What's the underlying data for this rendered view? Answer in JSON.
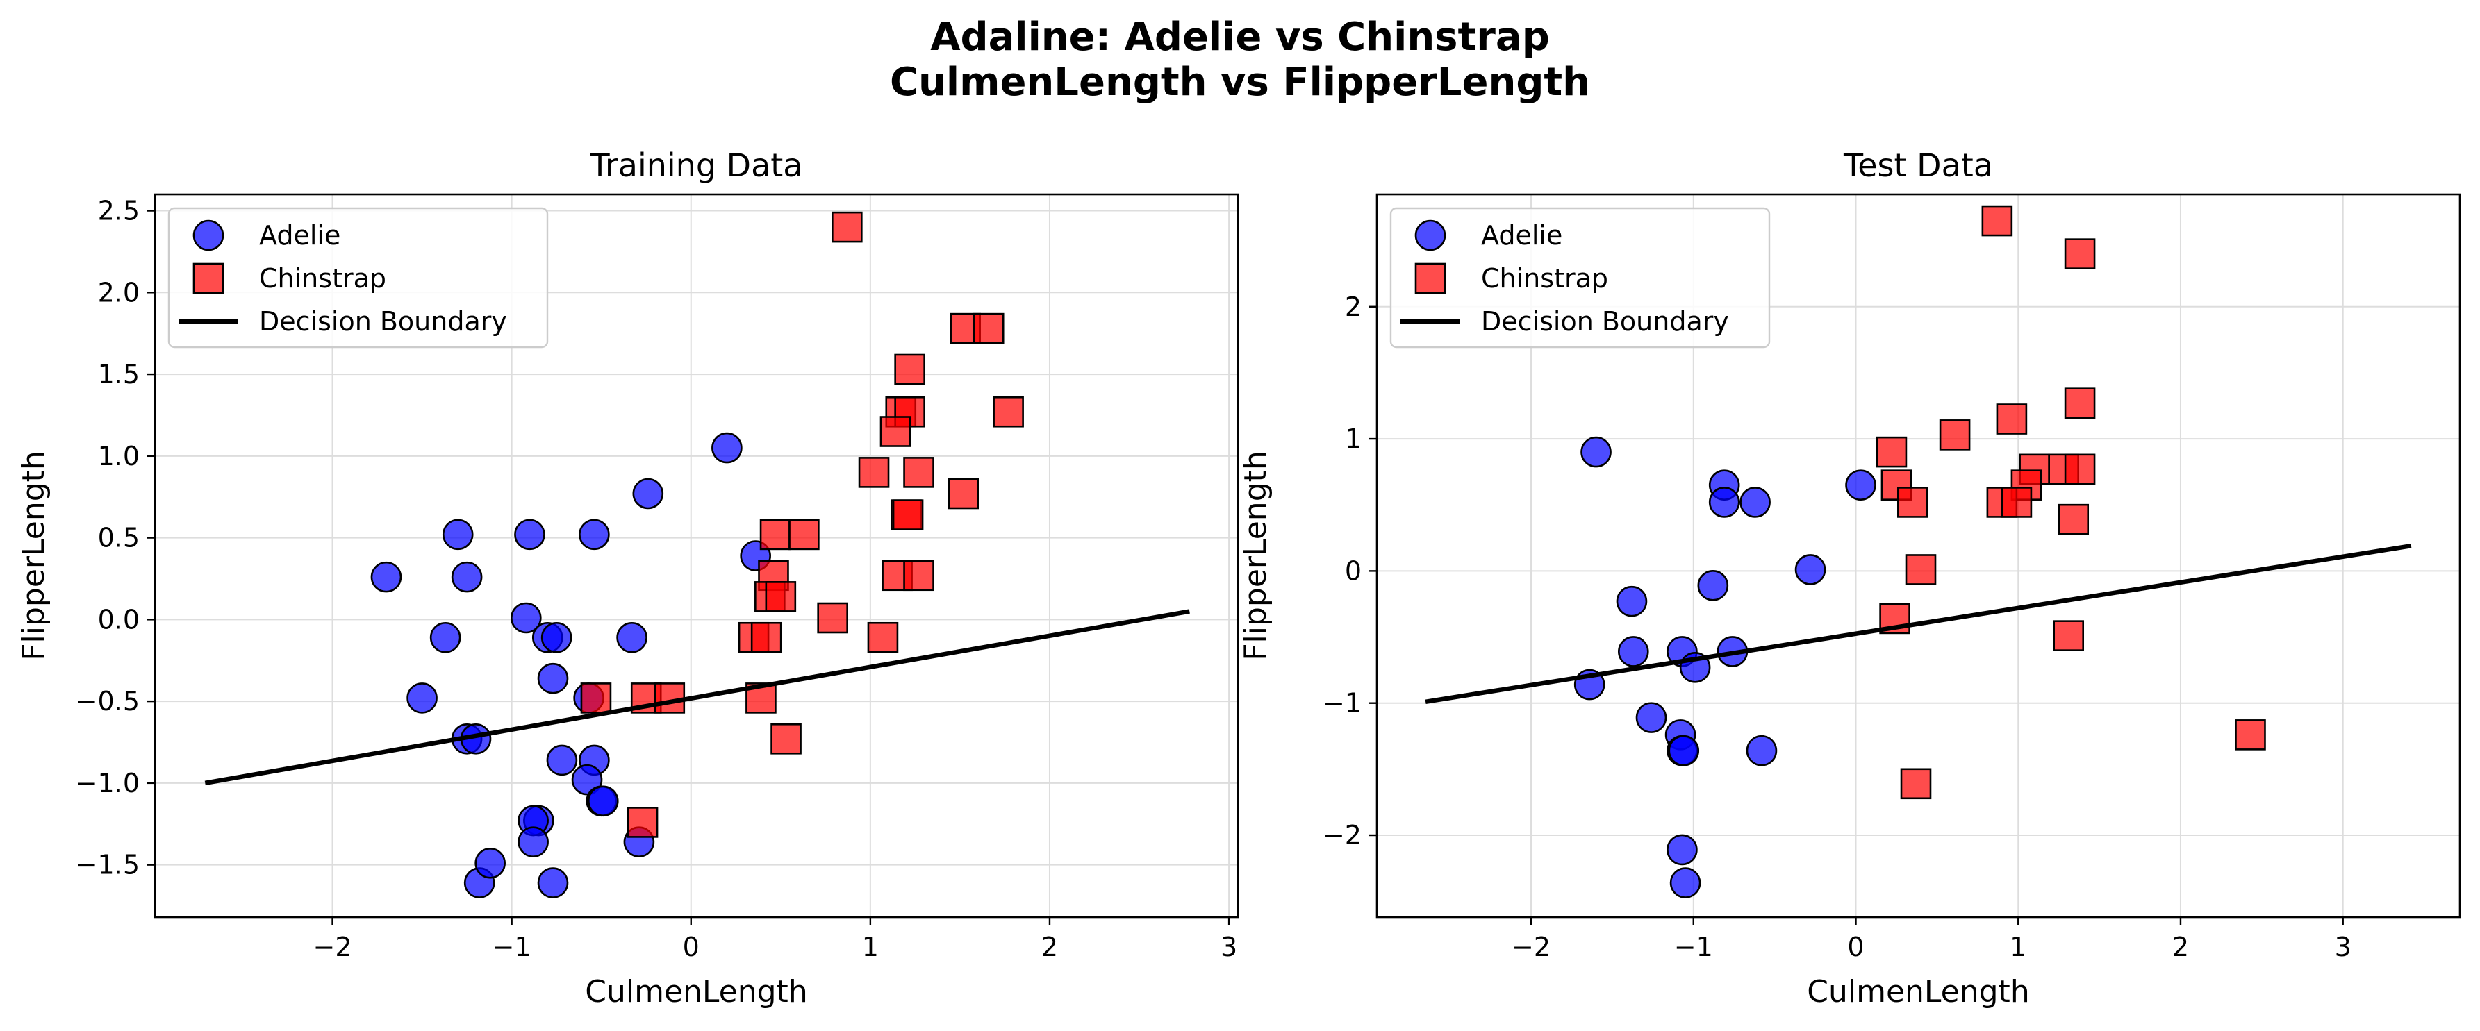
{
  "figure": {
    "title_line1": "Adaline: Adelie vs Chinstrap",
    "title_line2": "CulmenLength vs FlipperLength"
  },
  "colors": {
    "adelie": "#0000ff",
    "chinstrap": "#ff0000",
    "boundary": "#000000",
    "grid": "#dddddd"
  },
  "chart_data": [
    {
      "type": "scatter",
      "title": "Training Data",
      "xlabel": "CulmenLength",
      "ylabel": "FlipperLength",
      "xlim": [
        -2.99,
        3.05
      ],
      "ylim": [
        -1.82,
        2.6
      ],
      "xticks": [
        -2,
        -1,
        0,
        1,
        2,
        3
      ],
      "yticks": [
        -1.5,
        -1.0,
        -0.5,
        0.0,
        0.5,
        1.0,
        1.5,
        2.0,
        2.5
      ],
      "xtick_labels": [
        "−2",
        "−1",
        "0",
        "1",
        "2",
        "3"
      ],
      "ytick_labels": [
        "−1.5",
        "−1.0",
        "−0.5",
        "0.0",
        "0.5",
        "1.0",
        "1.5",
        "2.0",
        "2.5"
      ],
      "grid": true,
      "legend_position": "top-left",
      "legend": [
        "Adelie",
        "Chinstrap",
        "Decision Boundary"
      ],
      "series": [
        {
          "name": "Adelie",
          "marker": "circle",
          "points": [
            [
              -1.7,
              0.26
            ],
            [
              -1.3,
              0.52
            ],
            [
              -1.25,
              0.26
            ],
            [
              -1.37,
              -0.11
            ],
            [
              -1.5,
              -0.48
            ],
            [
              -1.25,
              -0.73
            ],
            [
              -1.2,
              -0.73
            ],
            [
              -1.18,
              -1.61
            ],
            [
              -1.12,
              -1.49
            ],
            [
              -0.9,
              0.52
            ],
            [
              -0.92,
              0.01
            ],
            [
              -0.8,
              -0.11
            ],
            [
              -0.75,
              -0.11
            ],
            [
              -0.77,
              -0.36
            ],
            [
              -0.72,
              -0.86
            ],
            [
              -0.85,
              -1.23
            ],
            [
              -0.88,
              -1.23
            ],
            [
              -0.88,
              -1.36
            ],
            [
              -0.77,
              -1.61
            ],
            [
              -0.54,
              0.52
            ],
            [
              -0.24,
              0.77
            ],
            [
              -0.33,
              -0.11
            ],
            [
              -0.57,
              -0.48
            ],
            [
              -0.54,
              -0.86
            ],
            [
              -0.58,
              -0.98
            ],
            [
              -0.5,
              -1.11
            ],
            [
              -0.49,
              -1.11
            ],
            [
              -0.29,
              -1.36
            ],
            [
              0.2,
              1.05
            ],
            [
              0.36,
              0.39
            ]
          ]
        },
        {
          "name": "Chinstrap",
          "marker": "square",
          "points": [
            [
              0.87,
              2.4
            ],
            [
              1.53,
              1.78
            ],
            [
              1.66,
              1.78
            ],
            [
              1.22,
              1.53
            ],
            [
              1.17,
              1.27
            ],
            [
              1.22,
              1.27
            ],
            [
              1.77,
              1.27
            ],
            [
              1.14,
              1.15
            ],
            [
              1.02,
              0.9
            ],
            [
              1.27,
              0.9
            ],
            [
              1.2,
              0.64
            ],
            [
              1.21,
              0.64
            ],
            [
              1.52,
              0.77
            ],
            [
              0.47,
              0.52
            ],
            [
              0.63,
              0.52
            ],
            [
              0.46,
              0.27
            ],
            [
              1.15,
              0.27
            ],
            [
              1.27,
              0.27
            ],
            [
              0.44,
              0.14
            ],
            [
              0.5,
              0.14
            ],
            [
              0.79,
              0.01
            ],
            [
              0.35,
              -0.11
            ],
            [
              0.42,
              -0.11
            ],
            [
              1.07,
              -0.11
            ],
            [
              -0.53,
              -0.48
            ],
            [
              -0.25,
              -0.48
            ],
            [
              -0.12,
              -0.48
            ],
            [
              0.39,
              -0.48
            ],
            [
              0.53,
              -0.73
            ],
            [
              -0.27,
              -1.24
            ]
          ]
        }
      ],
      "decision_boundary": {
        "name": "Decision Boundary",
        "x": [
          -2.71,
          2.78
        ],
        "y": [
          -1.0,
          0.05
        ]
      }
    },
    {
      "type": "scatter",
      "title": "Test Data",
      "xlabel": "CulmenLength",
      "ylabel": "FlipperLength",
      "xlim": [
        -2.95,
        3.72
      ],
      "ylim": [
        -2.62,
        2.85
      ],
      "xticks": [
        -2,
        -1,
        0,
        1,
        2,
        3
      ],
      "yticks": [
        -2,
        -1,
        0,
        1,
        2
      ],
      "xtick_labels": [
        "−2",
        "−1",
        "0",
        "1",
        "2",
        "3"
      ],
      "ytick_labels": [
        "−2",
        "−1",
        "0",
        "1",
        "2"
      ],
      "grid": true,
      "legend_position": "top-left",
      "legend": [
        "Adelie",
        "Chinstrap",
        "Decision Boundary"
      ],
      "series": [
        {
          "name": "Adelie",
          "marker": "circle",
          "points": [
            [
              -1.6,
              0.9
            ],
            [
              -0.81,
              0.65
            ],
            [
              -0.81,
              0.52
            ],
            [
              -0.62,
              0.52
            ],
            [
              0.03,
              0.65
            ],
            [
              -0.28,
              0.01
            ],
            [
              -0.88,
              -0.11
            ],
            [
              -1.38,
              -0.23
            ],
            [
              -1.37,
              -0.61
            ],
            [
              -1.07,
              -0.61
            ],
            [
              -0.76,
              -0.61
            ],
            [
              -0.99,
              -0.73
            ],
            [
              -1.64,
              -0.86
            ],
            [
              -1.26,
              -1.11
            ],
            [
              -1.08,
              -1.24
            ],
            [
              -1.07,
              -1.36
            ],
            [
              -1.06,
              -1.36
            ],
            [
              -0.58,
              -1.36
            ],
            [
              -1.07,
              -2.11
            ],
            [
              -1.05,
              -2.36
            ]
          ]
        },
        {
          "name": "Chinstrap",
          "marker": "square",
          "points": [
            [
              0.87,
              2.65
            ],
            [
              1.38,
              2.4
            ],
            [
              1.38,
              1.27
            ],
            [
              0.96,
              1.15
            ],
            [
              0.61,
              1.03
            ],
            [
              0.22,
              0.9
            ],
            [
              1.1,
              0.77
            ],
            [
              1.28,
              0.77
            ],
            [
              1.38,
              0.77
            ],
            [
              0.25,
              0.65
            ],
            [
              1.05,
              0.65
            ],
            [
              0.35,
              0.52
            ],
            [
              0.9,
              0.52
            ],
            [
              0.99,
              0.52
            ],
            [
              1.34,
              0.39
            ],
            [
              0.4,
              0.01
            ],
            [
              0.24,
              -0.36
            ],
            [
              1.31,
              -0.49
            ],
            [
              2.43,
              -1.24
            ],
            [
              0.37,
              -1.61
            ]
          ]
        }
      ],
      "decision_boundary": {
        "name": "Decision Boundary",
        "x": [
          -2.65,
          3.42
        ],
        "y": [
          -0.99,
          0.19
        ]
      }
    }
  ]
}
